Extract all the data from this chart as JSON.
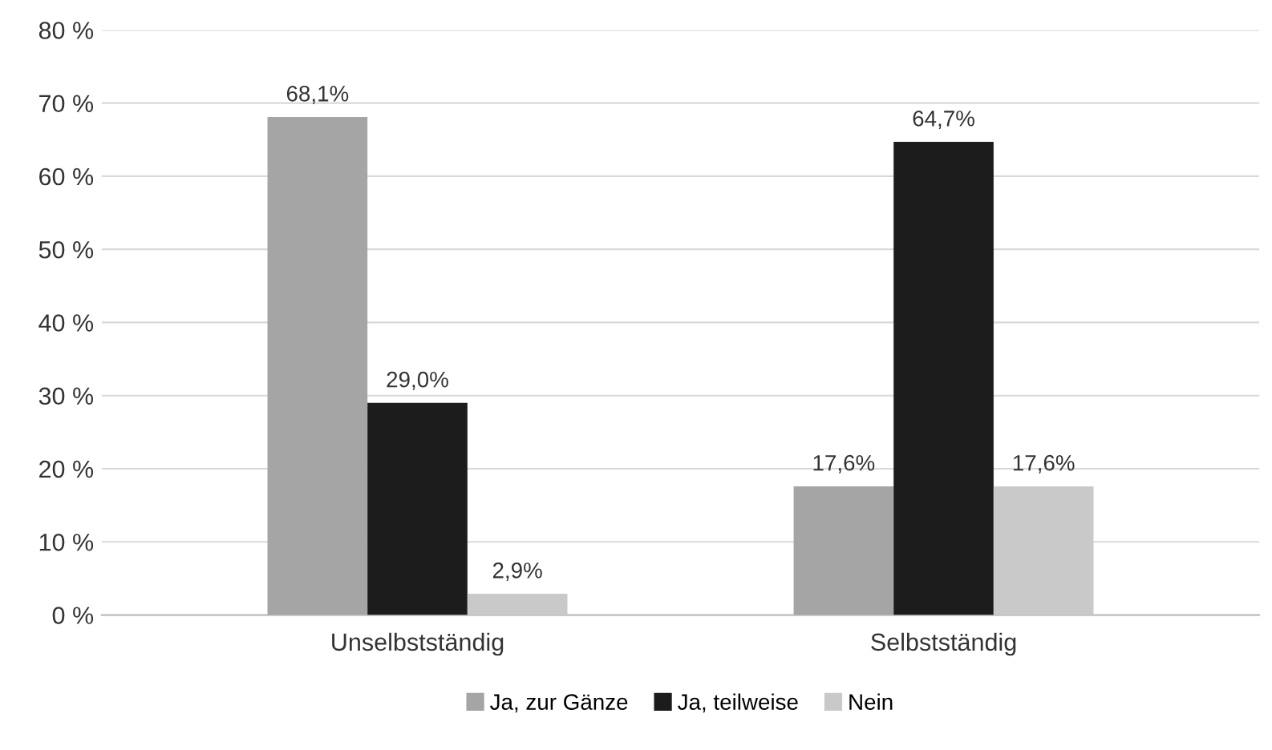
{
  "chart_data": {
    "type": "bar",
    "categories": [
      "Unselbstständig",
      "Selbstständig"
    ],
    "series": [
      {
        "name": "Ja, zur Gänze",
        "color": "#a5a5a5",
        "values": [
          68.1,
          17.6
        ],
        "value_labels": [
          "68,1%",
          "17,6%"
        ]
      },
      {
        "name": "Ja, teilweise",
        "color": "#1c1c1c",
        "values": [
          29.0,
          64.7
        ],
        "value_labels": [
          "29,0%",
          "64,7%"
        ]
      },
      {
        "name": "Nein",
        "color": "#c9c9c9",
        "values": [
          2.9,
          17.6
        ],
        "value_labels": [
          "2,9%",
          "17,6%"
        ]
      }
    ],
    "ylim": [
      0,
      80
    ],
    "yticks": [
      {
        "value": 0,
        "label": "0 %"
      },
      {
        "value": 10,
        "label": "10 %"
      },
      {
        "value": 20,
        "label": "20 %"
      },
      {
        "value": 30,
        "label": "30 %"
      },
      {
        "value": 40,
        "label": "40 %"
      },
      {
        "value": 50,
        "label": "50 %"
      },
      {
        "value": 60,
        "label": "60 %"
      },
      {
        "value": 70,
        "label": "70 %"
      },
      {
        "value": 80,
        "label": "80 %"
      }
    ],
    "grid": "y",
    "legend": "bottom"
  }
}
